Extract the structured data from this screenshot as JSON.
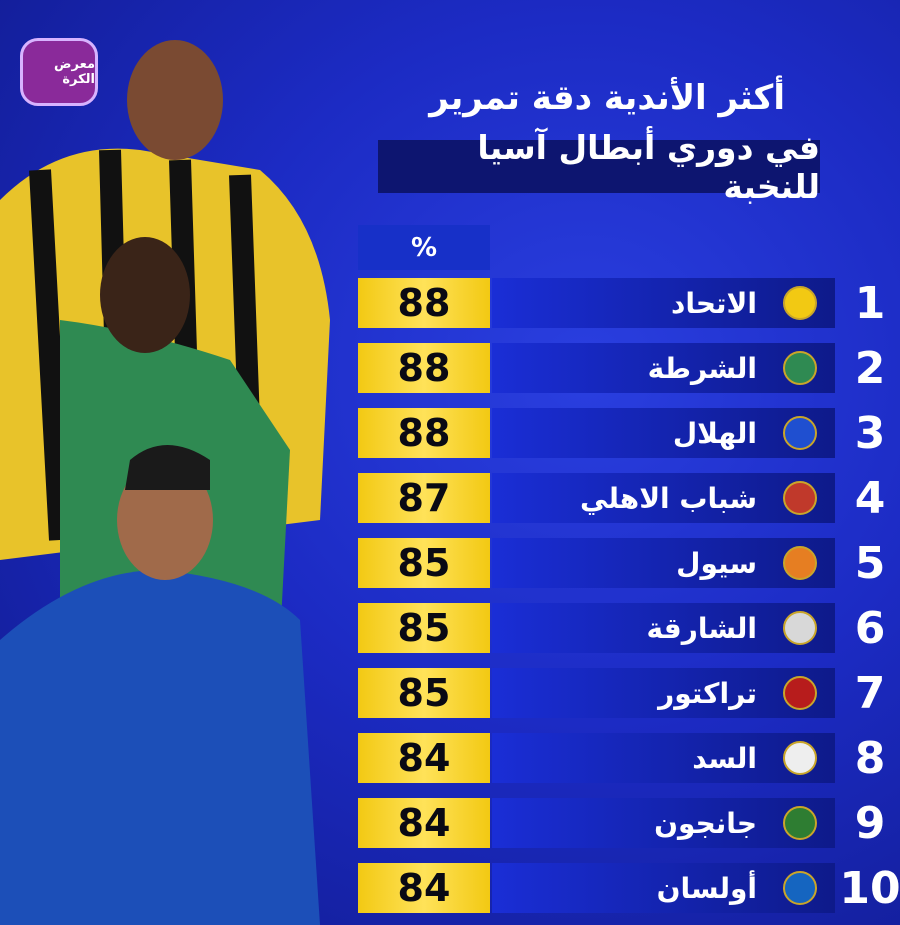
{
  "header": {
    "badge": "معرض الكرة",
    "title": "أكثر الأندية دقة تمرير",
    "subtitle": "في دوري أبطال آسيا للنخبة"
  },
  "table": {
    "value_header": "%",
    "rows": [
      {
        "rank": 1,
        "club": "الاتحاد",
        "value": 88
      },
      {
        "rank": 2,
        "club": "الشرطة",
        "value": 88
      },
      {
        "rank": 3,
        "club": "الهلال",
        "value": 88
      },
      {
        "rank": 4,
        "club": "شباب الاهلي",
        "value": 87
      },
      {
        "rank": 5,
        "club": "سيول",
        "value": 85
      },
      {
        "rank": 6,
        "club": "الشارقة",
        "value": 85
      },
      {
        "rank": 7,
        "club": "تراكتور",
        "value": 85
      },
      {
        "rank": 8,
        "club": "السد",
        "value": 84
      },
      {
        "rank": 9,
        "club": "جانجون",
        "value": 84
      },
      {
        "rank": 10,
        "club": "أولسان",
        "value": 84
      }
    ]
  }
}
